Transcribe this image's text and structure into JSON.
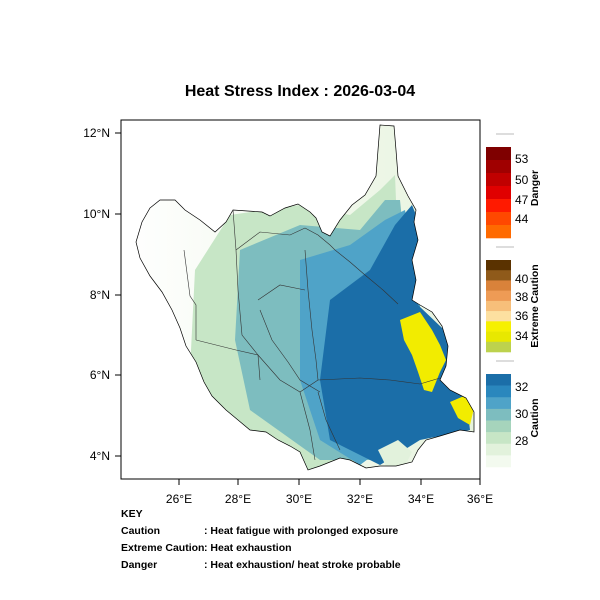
{
  "title": "Heat Stress Index : 2026-03-04",
  "map": {
    "x_ticks": [
      "26°E",
      "28°E",
      "30°E",
      "32°E",
      "34°E",
      "36°E"
    ],
    "y_ticks": [
      "12°N",
      "10°N",
      "8°N",
      "6°N",
      "4°N"
    ],
    "lon_range": [
      24.0,
      36.2
    ],
    "lat_range": [
      3.4,
      12.4
    ]
  },
  "legend": {
    "danger": {
      "title": "Danger",
      "labels": [
        "53",
        "50",
        "47",
        "44"
      ],
      "colors": [
        "#7f0000",
        "#a00000",
        "#c00000",
        "#e00000",
        "#ff1a00",
        "#ff4800",
        "#ff6a00"
      ]
    },
    "extreme_caution": {
      "title": "Extreme Caution",
      "labels": [
        "40",
        "38",
        "36",
        "34"
      ],
      "colors": [
        "#5a3200",
        "#8f5a1a",
        "#d9823a",
        "#ee9b55",
        "#f7bf7a",
        "#fde0a0",
        "#f6f000",
        "#e8e800",
        "#bdd24d"
      ]
    },
    "caution": {
      "title": "Caution",
      "labels": [
        "32",
        "30",
        "28"
      ],
      "colors": [
        "#1b6ea8",
        "#2a87bd",
        "#4fa3c8",
        "#7dbdbf",
        "#a6d4bc",
        "#c7e6c6",
        "#e2f2dc",
        "#f3faef"
      ]
    }
  },
  "key": {
    "heading": "KEY",
    "rows": [
      {
        "category": "Caution",
        "description": ": Heat fatigue with prolonged exposure"
      },
      {
        "category": "Extreme Caution",
        "description": ": Heat exhaustion"
      },
      {
        "category": "Danger",
        "description": ": Heat exhaustion/ heat stroke probable"
      }
    ]
  }
}
